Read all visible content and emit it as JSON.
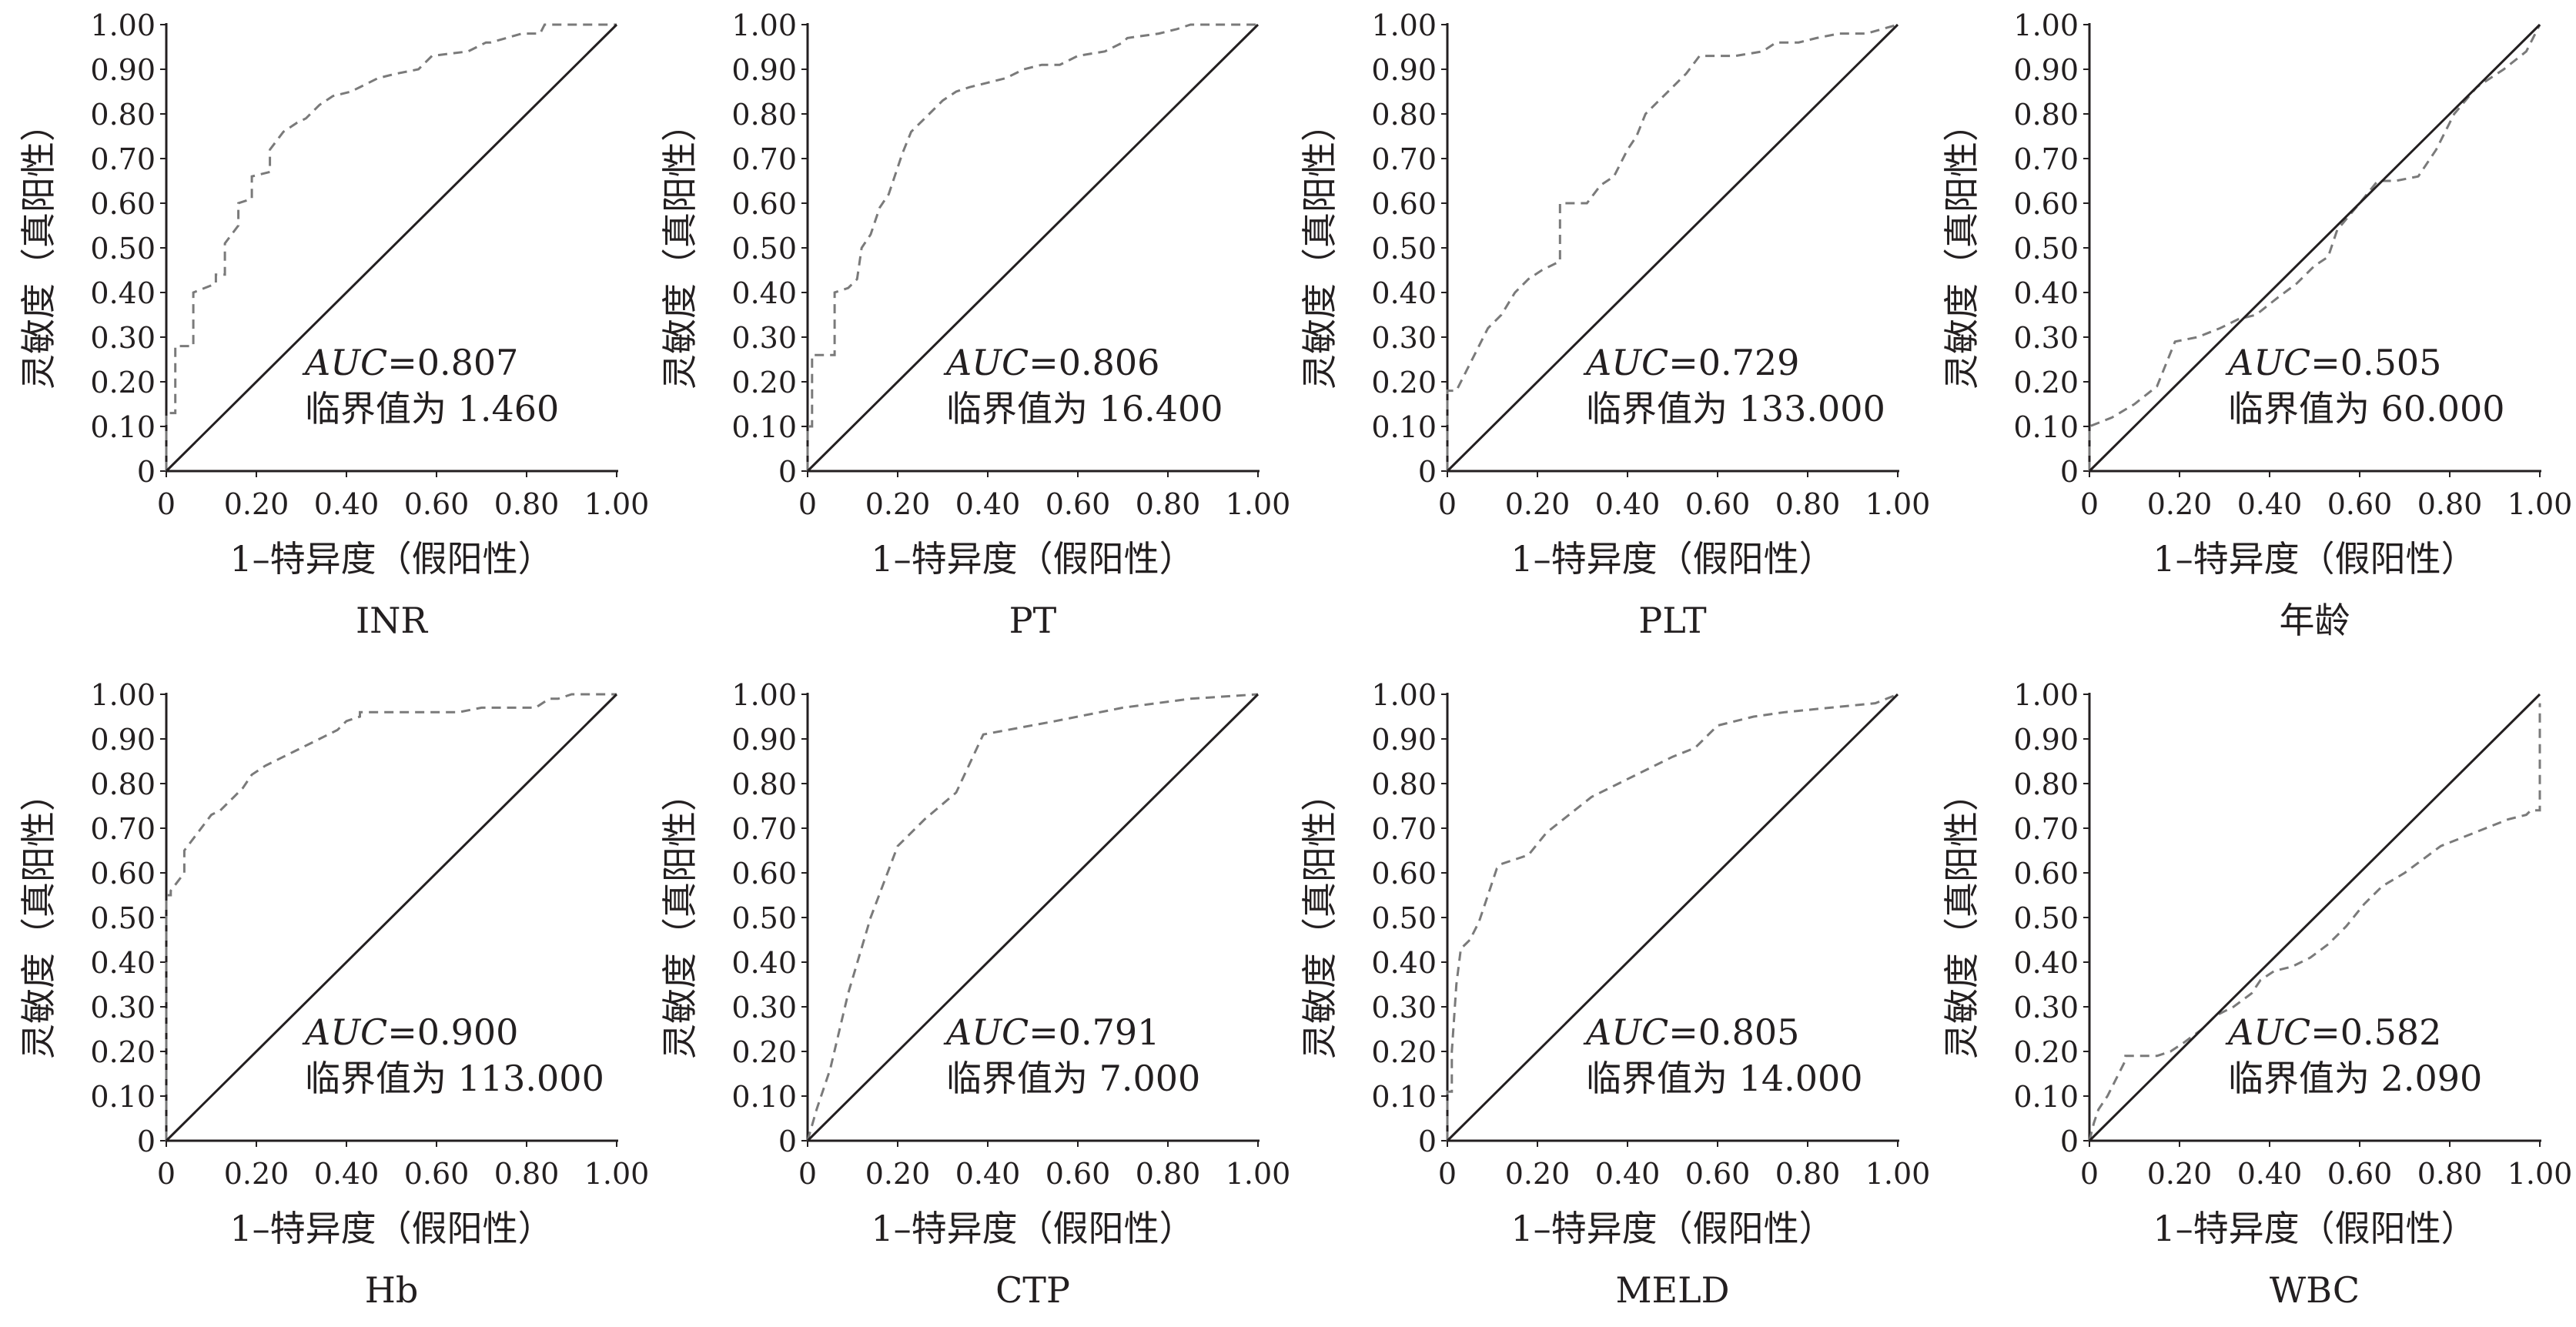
{
  "axes": {
    "xlabel": "1–特异度（假阳性）",
    "ylabel": "灵敏度（真阳性）",
    "ticks": [
      "0",
      "0.10",
      "0.20",
      "0.30",
      "0.40",
      "0.50",
      "0.60",
      "0.70",
      "0.80",
      "0.90",
      "1.00"
    ],
    "xticks": [
      "0",
      "0.20",
      "0.40",
      "0.60",
      "0.80",
      "1.00"
    ]
  },
  "chart_data": [
    {
      "type": "line",
      "title": "INR",
      "auc_label": "AUC",
      "auc_value": "=0.807",
      "cutoff": "临界值为 1.460",
      "xlim": [
        0,
        1
      ],
      "ylim": [
        0,
        1
      ],
      "grid": false,
      "series": [
        {
          "x": [
            0,
            0,
            0.02,
            0.02,
            0.06,
            0.06,
            0.11,
            0.11,
            0.13,
            0.13,
            0.16,
            0.16,
            0.19,
            0.19,
            0.23,
            0.23,
            0.26,
            0.29,
            0.31,
            0.34,
            0.37,
            0.41,
            0.47,
            0.51,
            0.56,
            0.59,
            0.67,
            0.71,
            0.72,
            0.79,
            0.83,
            0.84,
            1.0
          ],
          "y": [
            0,
            0.13,
            0.13,
            0.28,
            0.28,
            0.4,
            0.42,
            0.44,
            0.44,
            0.51,
            0.55,
            0.6,
            0.61,
            0.66,
            0.67,
            0.72,
            0.76,
            0.78,
            0.79,
            0.82,
            0.84,
            0.85,
            0.88,
            0.89,
            0.9,
            0.93,
            0.94,
            0.96,
            0.96,
            0.98,
            0.98,
            1.0,
            1.0
          ],
          "style": "dashed"
        },
        {
          "x": [
            0,
            1
          ],
          "y": [
            0,
            1
          ],
          "style": "solid"
        }
      ]
    },
    {
      "type": "line",
      "title": "PT",
      "auc_label": "AUC",
      "auc_value": "=0.806",
      "cutoff": "临界值为 16.400",
      "xlim": [
        0,
        1
      ],
      "ylim": [
        0,
        1
      ],
      "grid": false,
      "series": [
        {
          "x": [
            0,
            0,
            0.01,
            0.01,
            0.06,
            0.06,
            0.09,
            0.11,
            0.12,
            0.14,
            0.16,
            0.18,
            0.2,
            0.21,
            0.23,
            0.25,
            0.27,
            0.3,
            0.33,
            0.36,
            0.4,
            0.44,
            0.48,
            0.52,
            0.56,
            0.6,
            0.66,
            0.7,
            0.71,
            0.78,
            0.82,
            0.85,
            1.0
          ],
          "y": [
            0,
            0.1,
            0.1,
            0.26,
            0.26,
            0.4,
            0.41,
            0.43,
            0.5,
            0.53,
            0.59,
            0.62,
            0.68,
            0.71,
            0.76,
            0.78,
            0.8,
            0.83,
            0.85,
            0.86,
            0.87,
            0.88,
            0.9,
            0.91,
            0.91,
            0.93,
            0.94,
            0.96,
            0.97,
            0.98,
            0.99,
            1.0,
            1.0
          ],
          "style": "dashed"
        },
        {
          "x": [
            0,
            1
          ],
          "y": [
            0,
            1
          ],
          "style": "solid"
        }
      ]
    },
    {
      "type": "line",
      "title": "PLT",
      "auc_label": "AUC",
      "auc_value": "=0.729",
      "cutoff": "临界值为 133.000",
      "xlim": [
        0,
        1
      ],
      "ylim": [
        0,
        1
      ],
      "grid": false,
      "series": [
        {
          "x": [
            0,
            0,
            0.02,
            0.04,
            0.07,
            0.09,
            0.12,
            0.15,
            0.18,
            0.21,
            0.25,
            0.25,
            0.31,
            0.34,
            0.37,
            0.38,
            0.4,
            0.42,
            0.44,
            0.47,
            0.49,
            0.51,
            0.53,
            0.56,
            0.64,
            0.7,
            0.73,
            0.78,
            0.82,
            0.87,
            0.93,
            1.0
          ],
          "y": [
            0,
            0.18,
            0.18,
            0.22,
            0.28,
            0.32,
            0.35,
            0.4,
            0.43,
            0.45,
            0.47,
            0.6,
            0.6,
            0.64,
            0.66,
            0.68,
            0.72,
            0.75,
            0.8,
            0.83,
            0.85,
            0.87,
            0.89,
            0.93,
            0.93,
            0.94,
            0.96,
            0.96,
            0.97,
            0.98,
            0.98,
            1.0
          ],
          "style": "dashed"
        },
        {
          "x": [
            0,
            1
          ],
          "y": [
            0,
            1
          ],
          "style": "solid"
        }
      ]
    },
    {
      "type": "line",
      "title": "年龄",
      "auc_label": "AUC",
      "auc_value": "=0.505",
      "cutoff": "临界值为 60.000",
      "xlim": [
        0,
        1
      ],
      "ylim": [
        0,
        1
      ],
      "grid": false,
      "series": [
        {
          "x": [
            0,
            0,
            0.05,
            0.1,
            0.15,
            0.19,
            0.24,
            0.29,
            0.33,
            0.37,
            0.42,
            0.46,
            0.5,
            0.53,
            0.55,
            0.6,
            0.64,
            0.68,
            0.73,
            0.77,
            0.81,
            0.86,
            0.92,
            0.97,
            1.0
          ],
          "y": [
            0,
            0.1,
            0.12,
            0.15,
            0.19,
            0.29,
            0.3,
            0.32,
            0.34,
            0.35,
            0.39,
            0.42,
            0.46,
            0.48,
            0.54,
            0.6,
            0.65,
            0.65,
            0.66,
            0.72,
            0.8,
            0.86,
            0.9,
            0.94,
            1.0
          ],
          "style": "dashed"
        },
        {
          "x": [
            0,
            1
          ],
          "y": [
            0,
            1
          ],
          "style": "solid"
        }
      ]
    },
    {
      "type": "line",
      "title": "Hb",
      "auc_label": "AUC",
      "auc_value": "=0.900",
      "cutoff": "临界值为 113.000",
      "xlim": [
        0,
        1
      ],
      "ylim": [
        0,
        1
      ],
      "grid": false,
      "series": [
        {
          "x": [
            0,
            0,
            0.01,
            0.01,
            0.04,
            0.04,
            0.07,
            0.1,
            0.12,
            0.15,
            0.17,
            0.19,
            0.22,
            0.26,
            0.3,
            0.34,
            0.38,
            0.4,
            0.43,
            0.43,
            0.65,
            0.7,
            0.82,
            0.85,
            0.87,
            0.9,
            0.93,
            1.0
          ],
          "y": [
            0,
            0.55,
            0.55,
            0.56,
            0.6,
            0.65,
            0.69,
            0.73,
            0.74,
            0.77,
            0.79,
            0.82,
            0.84,
            0.86,
            0.88,
            0.9,
            0.92,
            0.94,
            0.95,
            0.96,
            0.96,
            0.97,
            0.97,
            0.99,
            0.99,
            1.0,
            1.0,
            1.0
          ],
          "style": "dashed"
        },
        {
          "x": [
            0,
            1
          ],
          "y": [
            0,
            1
          ],
          "style": "solid"
        }
      ]
    },
    {
      "type": "line",
      "title": "CTP",
      "auc_label": "AUC",
      "auc_value": "=0.791",
      "cutoff": "临界值为 7.000",
      "xlim": [
        0,
        1
      ],
      "ylim": [
        0,
        1
      ],
      "grid": false,
      "series": [
        {
          "x": [
            0,
            0.02,
            0.05,
            0.09,
            0.14,
            0.2,
            0.26,
            0.33,
            0.39,
            0.55,
            0.7,
            0.85,
            1.0
          ],
          "y": [
            0,
            0.07,
            0.16,
            0.33,
            0.5,
            0.66,
            0.72,
            0.78,
            0.91,
            0.94,
            0.97,
            0.99,
            1.0
          ],
          "style": "dashed"
        },
        {
          "x": [
            0,
            1
          ],
          "y": [
            0,
            1
          ],
          "style": "solid"
        }
      ]
    },
    {
      "type": "line",
      "title": "MELD",
      "auc_label": "AUC",
      "auc_value": "=0.805",
      "cutoff": "临界值为 14.000",
      "xlim": [
        0,
        1
      ],
      "ylim": [
        0,
        1
      ],
      "grid": false,
      "series": [
        {
          "x": [
            0,
            0,
            0.01,
            0.01,
            0.02,
            0.03,
            0.05,
            0.07,
            0.09,
            0.11,
            0.12,
            0.15,
            0.18,
            0.22,
            0.27,
            0.32,
            0.38,
            0.44,
            0.5,
            0.55,
            0.58,
            0.6,
            0.68,
            0.75,
            0.85,
            0.95,
            1.0
          ],
          "y": [
            0,
            0.11,
            0.11,
            0.2,
            0.35,
            0.43,
            0.45,
            0.49,
            0.55,
            0.61,
            0.62,
            0.63,
            0.64,
            0.69,
            0.73,
            0.77,
            0.8,
            0.83,
            0.86,
            0.88,
            0.91,
            0.93,
            0.95,
            0.96,
            0.97,
            0.98,
            1.0
          ],
          "style": "dashed"
        },
        {
          "x": [
            0,
            1
          ],
          "y": [
            0,
            1
          ],
          "style": "solid"
        }
      ]
    },
    {
      "type": "line",
      "title": "WBC",
      "auc_label": "AUC",
      "auc_value": "=0.582",
      "cutoff": "临界值为 2.090",
      "xlim": [
        0,
        1
      ],
      "ylim": [
        0,
        1
      ],
      "grid": false,
      "series": [
        {
          "x": [
            0,
            0.01,
            0.02,
            0.04,
            0.06,
            0.08,
            0.08,
            0.15,
            0.18,
            0.21,
            0.25,
            0.28,
            0.32,
            0.36,
            0.38,
            0.41,
            0.45,
            0.49,
            0.53,
            0.57,
            0.61,
            0.65,
            0.7,
            0.74,
            0.78,
            0.83,
            0.88,
            0.93,
            0.97,
            0.98,
            1.0,
            1.0
          ],
          "y": [
            0,
            0.04,
            0.07,
            0.1,
            0.14,
            0.18,
            0.19,
            0.19,
            0.2,
            0.22,
            0.25,
            0.28,
            0.3,
            0.33,
            0.36,
            0.38,
            0.39,
            0.41,
            0.44,
            0.48,
            0.53,
            0.57,
            0.6,
            0.63,
            0.66,
            0.68,
            0.7,
            0.72,
            0.73,
            0.74,
            0.74,
            0.98
          ],
          "style": "dashed"
        },
        {
          "x": [
            0,
            1
          ],
          "y": [
            0,
            1
          ],
          "style": "solid"
        }
      ]
    }
  ]
}
